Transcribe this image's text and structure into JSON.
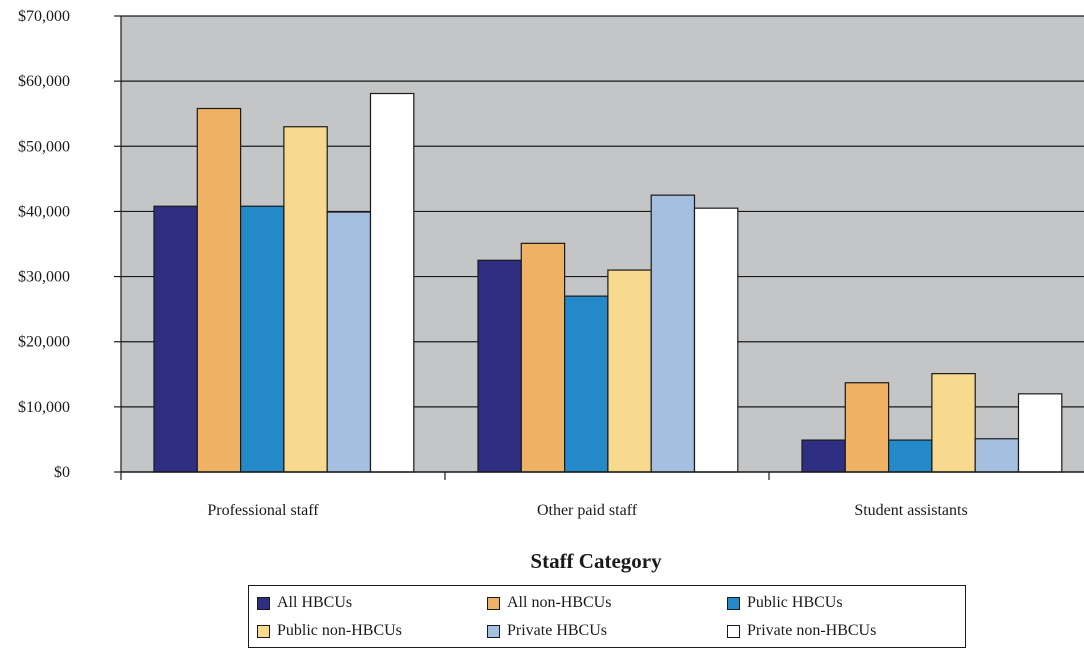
{
  "chart_data": {
    "type": "bar",
    "xlabel": "Staff Category",
    "ylabel": "",
    "ylim": [
      0,
      70000
    ],
    "yticks": [
      0,
      10000,
      20000,
      30000,
      40000,
      50000,
      60000,
      70000
    ],
    "ytick_labels": [
      "$0",
      "$10,000",
      "$20,000",
      "$30,000",
      "$40,000",
      "$50,000",
      "$60,000",
      "$70,000"
    ],
    "grid": true,
    "legend_position": "bottom",
    "categories": [
      "Professional staff",
      "Other paid staff",
      "Student assistants"
    ],
    "series": [
      {
        "name": "All HBCUs",
        "color": "#2e2f83",
        "values": [
          40800,
          32500,
          4900
        ]
      },
      {
        "name": "All non-HBCUs",
        "color": "#efb264",
        "values": [
          55800,
          35100,
          13700
        ]
      },
      {
        "name": "Public HBCUs",
        "color": "#2489c9",
        "values": [
          40800,
          27000,
          4900
        ]
      },
      {
        "name": "Public non-HBCUs",
        "color": "#f8da8e",
        "values": [
          53000,
          31000,
          15100
        ]
      },
      {
        "name": "Private HBCUs",
        "color": "#a4bfe0",
        "values": [
          39900,
          42500,
          5100
        ]
      },
      {
        "name": "Private non-HBCUs",
        "color": "#ffffff",
        "values": [
          58100,
          40500,
          12000
        ]
      }
    ]
  },
  "colors": {
    "plot_background": "#c3c5c7",
    "gridline": "#1a1a1a",
    "bar_outline": "#1a1a1a"
  }
}
